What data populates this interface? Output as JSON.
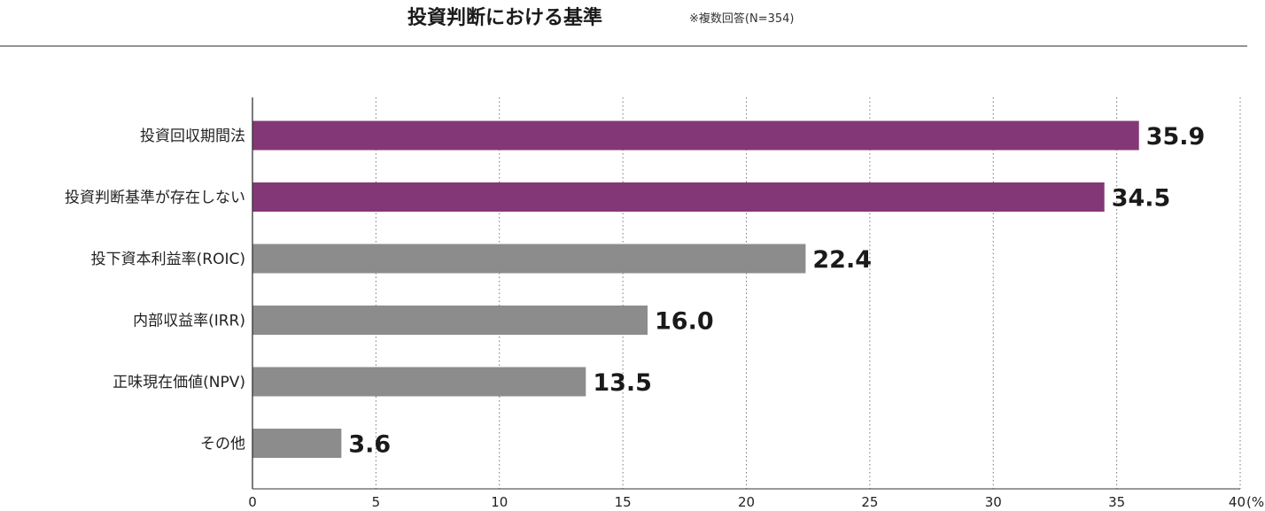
{
  "chart_data": {
    "type": "bar",
    "orientation": "horizontal",
    "title": "投資判断における基準",
    "note": "※複数回答(N=354)",
    "categories": [
      "投資回収期間法",
      "投資判断基準が存在しない",
      "投下資本利益率(ROIC)",
      "内部収益率(IRR)",
      "正味現在価値(NPV)",
      "その他"
    ],
    "values": [
      35.9,
      34.5,
      22.4,
      16.0,
      13.5,
      3.6
    ],
    "value_labels": [
      "35.9",
      "34.5",
      "22.4",
      "16.0",
      "13.5",
      "3.6"
    ],
    "bar_colors": [
      "#843777",
      "#843777",
      "#8c8c8c",
      "#8c8c8c",
      "#8c8c8c",
      "#8c8c8c"
    ],
    "xlim": [
      0,
      40
    ],
    "x_ticks": [
      0,
      5,
      10,
      15,
      20,
      25,
      30,
      35,
      40
    ],
    "x_tick_labels": [
      "0",
      "5",
      "10",
      "15",
      "20",
      "25",
      "30",
      "35",
      "40"
    ],
    "unit_label": "(%)",
    "grid": "vertical-dotted",
    "legend": "none"
  }
}
